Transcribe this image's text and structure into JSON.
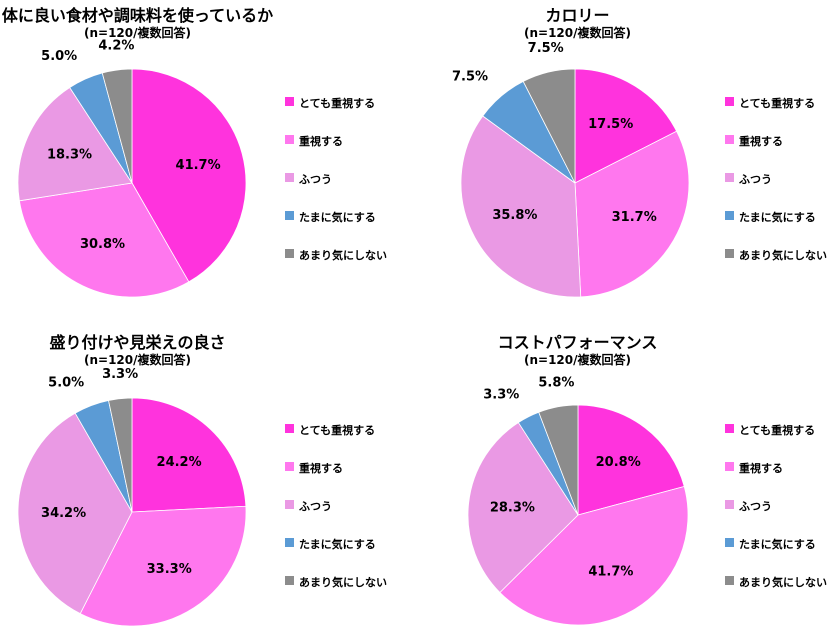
{
  "legend_labels": [
    "とても重視する",
    "重視する",
    "ふつう",
    "たまに気にする",
    "あまり気にしない"
  ],
  "colors": [
    "#ff33dd",
    "#ff77ee",
    "#ea99e4",
    "#5b9bd5",
    "#8c8c8c"
  ],
  "chart_data": [
    {
      "type": "pie",
      "title": "体に良い食材や調味料を使っているか",
      "subtitle": "(n=120/複数回答)",
      "categories": [
        "とても重視する",
        "重視する",
        "ふつう",
        "たまに気にする",
        "あまり気にしない"
      ],
      "values": [
        41.7,
        30.8,
        18.3,
        5.0,
        4.2
      ],
      "labels": [
        "41.7%",
        "30.8%",
        "18.3%",
        "5.0%",
        "4.2%"
      ],
      "legend_position": "right"
    },
    {
      "type": "pie",
      "title": "カロリー",
      "subtitle": "(n=120/複数回答)",
      "categories": [
        "とても重視する",
        "重視する",
        "ふつう",
        "たまに気にする",
        "あまり気にしない"
      ],
      "values": [
        17.5,
        31.7,
        35.8,
        7.5,
        7.5
      ],
      "labels": [
        "17.5%",
        "31.7%",
        "35.8%",
        "7.5%",
        "7.5%"
      ],
      "legend_position": "right"
    },
    {
      "type": "pie",
      "title": "盛り付けや見栄えの良さ",
      "subtitle": "(n=120/複数回答)",
      "categories": [
        "とても重視する",
        "重視する",
        "ふつう",
        "たまに気にする",
        "あまり気にしない"
      ],
      "values": [
        24.2,
        33.3,
        34.2,
        5.0,
        3.3
      ],
      "labels": [
        "24.2%",
        "33.3%",
        "34.2%",
        "5.0%",
        "3.3%"
      ],
      "legend_position": "right"
    },
    {
      "type": "pie",
      "title": "コストパフォーマンス",
      "subtitle": "(n=120/複数回答)",
      "categories": [
        "とても重視する",
        "重視する",
        "ふつう",
        "たまに気にする",
        "あまり気にしない"
      ],
      "values": [
        20.8,
        41.7,
        28.3,
        3.3,
        5.8
      ],
      "labels": [
        "20.8%",
        "41.7%",
        "28.3%",
        "3.3%",
        "5.8%"
      ],
      "legend_position": "right"
    }
  ]
}
